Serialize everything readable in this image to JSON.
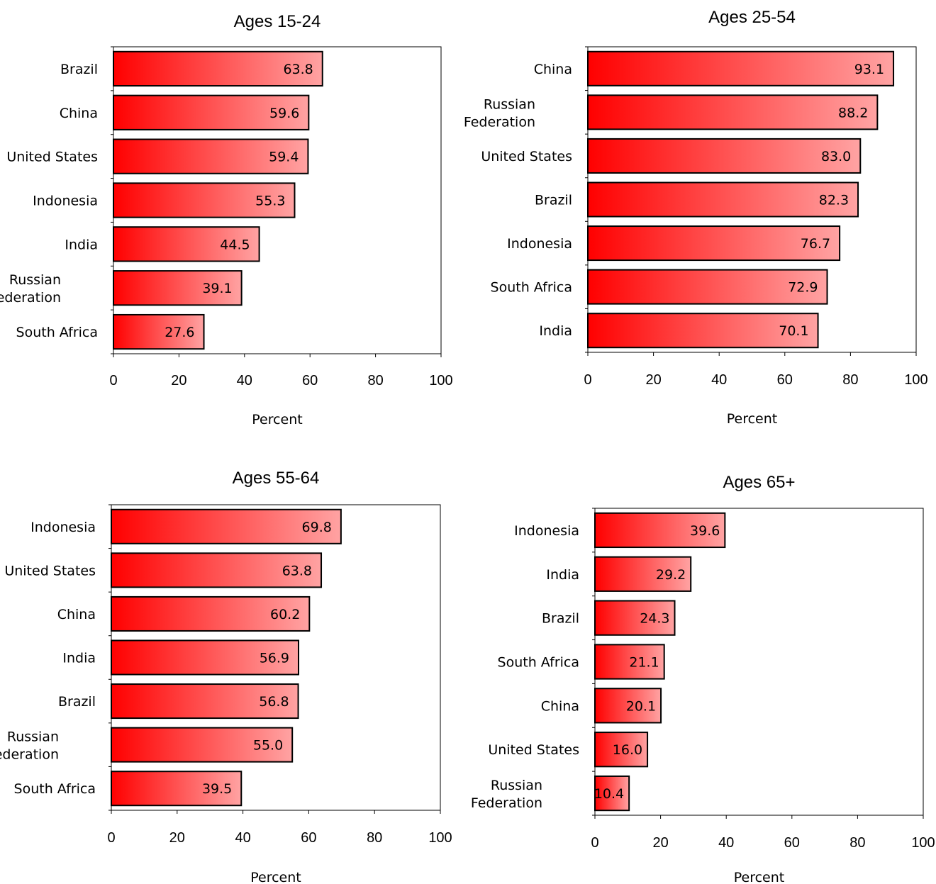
{
  "chart_data": [
    {
      "type": "bar",
      "orientation": "horizontal",
      "title": "Ages 15-24",
      "xlabel": "Percent",
      "xlim": [
        0,
        100
      ],
      "ticks": [
        0,
        20,
        40,
        60,
        80,
        100
      ],
      "categories": [
        "Brazil",
        "China",
        "United States",
        "Indonesia",
        "India",
        "Russian Federation",
        "South Africa"
      ],
      "values": [
        63.8,
        59.6,
        59.4,
        55.3,
        44.5,
        39.1,
        27.6
      ],
      "value_labels": [
        "63.8",
        "59.6",
        "59.4",
        "55.3",
        "44.5",
        "39.1",
        "27.6"
      ]
    },
    {
      "type": "bar",
      "orientation": "horizontal",
      "title": "Ages 25-54",
      "xlabel": "Percent",
      "xlim": [
        0,
        100
      ],
      "ticks": [
        0,
        20,
        40,
        60,
        80,
        100
      ],
      "categories": [
        "China",
        "Russian Federation",
        "United States",
        "Brazil",
        "Indonesia",
        "South Africa",
        "India"
      ],
      "values": [
        93.1,
        88.2,
        83.0,
        82.3,
        76.7,
        72.9,
        70.1
      ],
      "value_labels": [
        "93.1",
        "88.2",
        "83.0",
        "82.3",
        "76.7",
        "72.9",
        "70.1"
      ]
    },
    {
      "type": "bar",
      "orientation": "horizontal",
      "title": "Ages 55-64",
      "xlabel": "Percent",
      "xlim": [
        0,
        100
      ],
      "ticks": [
        0,
        20,
        40,
        60,
        80,
        100
      ],
      "categories": [
        "Indonesia",
        "United States",
        "China",
        "India",
        "Brazil",
        "Russian Federation",
        "South Africa"
      ],
      "values": [
        69.8,
        63.8,
        60.2,
        56.9,
        56.8,
        55.0,
        39.5
      ],
      "value_labels": [
        "69.8",
        "63.8",
        "60.2",
        "56.9",
        "56.8",
        "55.0",
        "39.5"
      ]
    },
    {
      "type": "bar",
      "orientation": "horizontal",
      "title": "Ages 65+",
      "xlabel": "Percent",
      "xlim": [
        0,
        100
      ],
      "ticks": [
        0,
        20,
        40,
        60,
        80,
        100
      ],
      "categories": [
        "Indonesia",
        "India",
        "Brazil",
        "South Africa",
        "China",
        "United States",
        "Russian Federation"
      ],
      "values": [
        39.6,
        29.2,
        24.3,
        21.1,
        20.1,
        16.0,
        10.4
      ],
      "value_labels": [
        "39.6",
        "29.2",
        "24.3",
        "21.1",
        "20.1",
        "16.0",
        "10.4"
      ]
    }
  ],
  "colors": {
    "bar_gradient_start": "#ff0000",
    "bar_gradient_end": "#ffa3a3",
    "bar_stroke": "#000000"
  }
}
